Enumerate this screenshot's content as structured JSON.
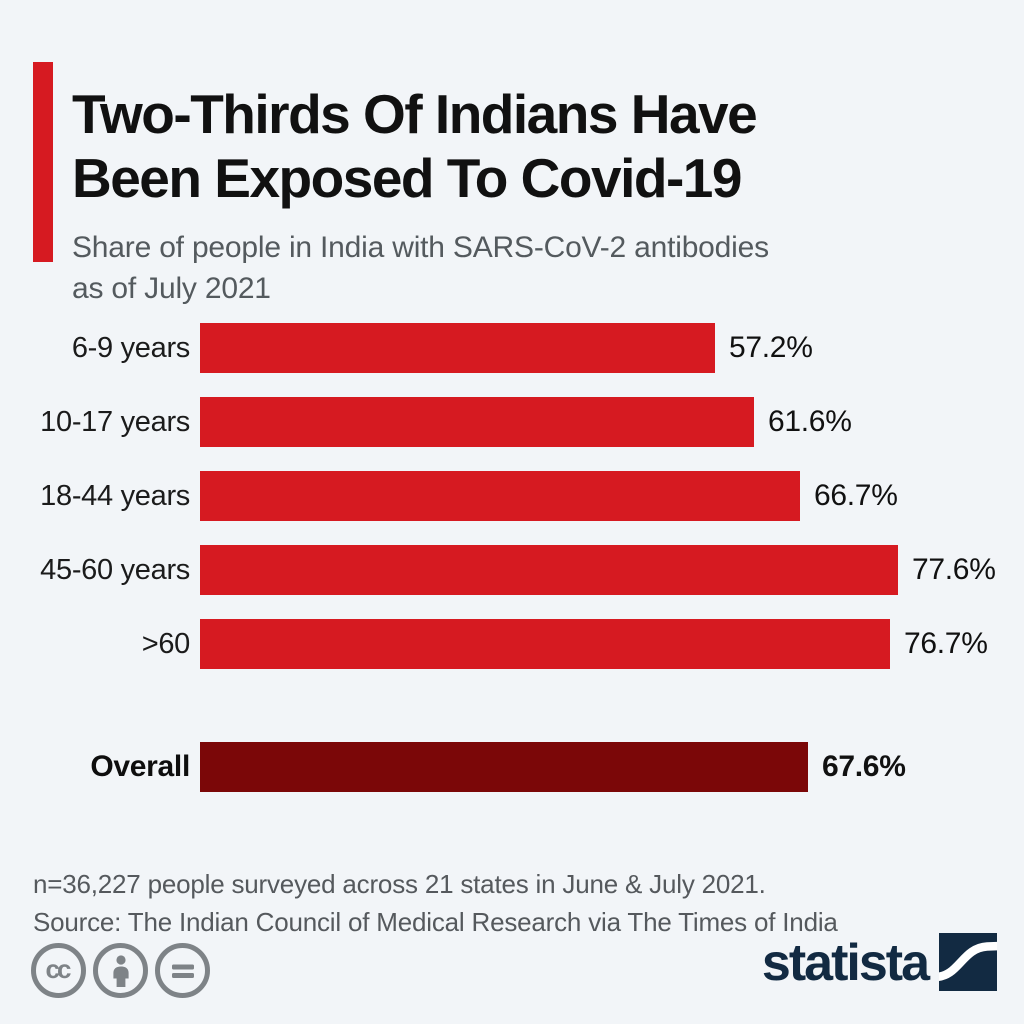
{
  "header": {
    "accent_color": "#D61A21",
    "title_line1": "Two-Thirds Of Indians Have",
    "title_line2": "Been Exposed To Covid-19",
    "subtitle_line1": "Share of people in India with SARS-CoV-2 antibodies",
    "subtitle_line2": "as of July 2021"
  },
  "chart_data": {
    "type": "bar",
    "orientation": "horizontal",
    "title": "Two-Thirds Of Indians Have Been Exposed To Covid-19",
    "subtitle": "Share of people in India with SARS-CoV-2 antibodies as of July 2021",
    "xlabel": "",
    "ylabel": "",
    "unit": "%",
    "xlim": [
      0,
      80
    ],
    "grid": false,
    "legend": false,
    "bar_color": "#D61A21",
    "overall_bar_color": "#7B0708",
    "categories": [
      "6-9 years",
      "10-17 years",
      "18-44 years",
      "45-60 years",
      ">60",
      "Overall"
    ],
    "values": [
      57.2,
      61.6,
      66.7,
      77.6,
      76.7,
      67.6
    ],
    "rows": [
      {
        "label": "6-9 years",
        "value": 57.2,
        "display": "57.2%",
        "color": "#D61A21"
      },
      {
        "label": "10-17 years",
        "value": 61.6,
        "display": "61.6%",
        "color": "#D61A21"
      },
      {
        "label": "18-44 years",
        "value": 66.7,
        "display": "66.7%",
        "color": "#D61A21"
      },
      {
        "label": "45-60 years",
        "value": 77.6,
        "display": "77.6%",
        "color": "#D61A21"
      },
      {
        "label": ">60",
        "value": 76.7,
        "display": "76.7%",
        "color": "#D61A21"
      },
      {
        "label": "Overall",
        "value": 67.6,
        "display": "67.6%",
        "color": "#7B0708"
      }
    ]
  },
  "footer": {
    "note": "n=36,227 people surveyed across 21 states in June & July 2021.",
    "source": "Source: The Indian Council of Medical Research via The Times of India",
    "cc_label": "cc",
    "license_icons": [
      "cc-icon",
      "attribution-icon",
      "nd-icon"
    ],
    "brand": "statista",
    "brand_color": "#122A42"
  }
}
